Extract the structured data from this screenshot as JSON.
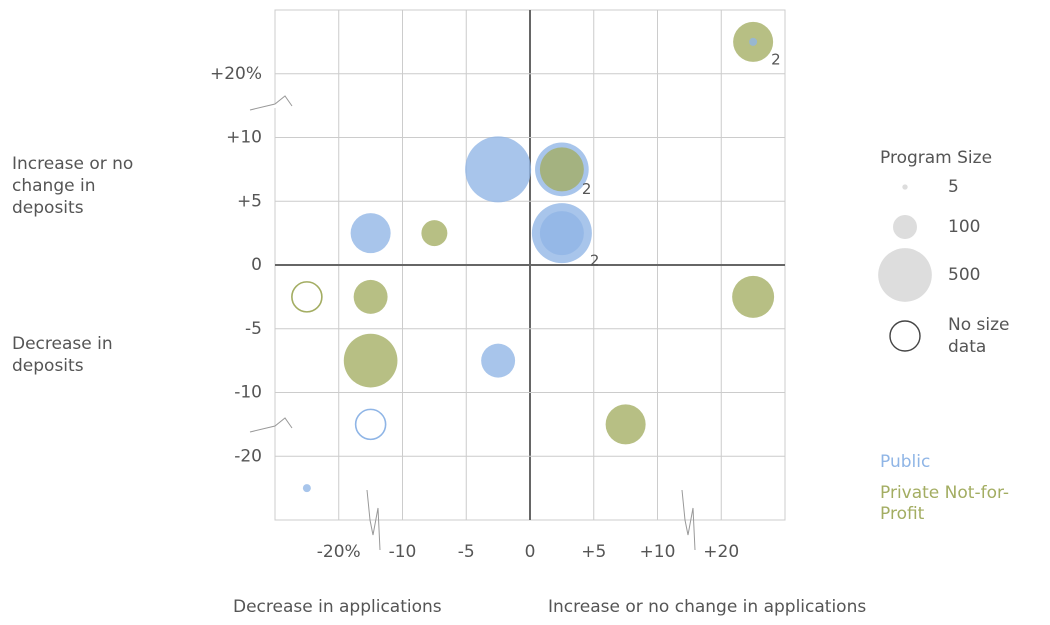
{
  "chart_data": {
    "type": "scatter",
    "xlim": [
      -30,
      30
    ],
    "ylim": [
      -30,
      30
    ],
    "xticks": [
      {
        "value": -20,
        "label": "-20%"
      },
      -10,
      -5,
      0,
      {
        "value": 5,
        "label": "+5"
      },
      {
        "value": 10,
        "label": "+10"
      },
      {
        "value": 20,
        "label": "+20"
      }
    ],
    "yticks": [
      {
        "value": 20,
        "label": "+20%"
      },
      {
        "value": 10,
        "label": "+10"
      },
      {
        "value": 5,
        "label": "+5"
      },
      0,
      -5,
      -10,
      -20
    ],
    "grid": true,
    "axis_labels": {
      "y_top": "Increase or no change in deposits",
      "y_bottom": "Decrease in deposits",
      "x_left": "Decrease in applications",
      "x_right": "Increase or no change in applications"
    },
    "size_legend": {
      "title": "Program Size",
      "sizes": [
        5,
        100,
        500
      ],
      "no_size_label": "No size data"
    },
    "series": [
      {
        "name": "Public",
        "color": "#8fb5e6",
        "x": [
          -2.5,
          2.5,
          2.5,
          2.5,
          -15,
          -2.5,
          -15,
          -25,
          25
        ],
        "y": [
          7.5,
          7.5,
          2.5,
          2.5,
          2.5,
          -7.5,
          -15,
          -25,
          25
        ],
        "sizes": [
          756,
          500,
          625,
          336,
          278,
          200,
          null,
          11,
          11
        ],
        "point_labels": [
          null,
          null,
          "2",
          null,
          null,
          null,
          null,
          null,
          null
        ]
      },
      {
        "name": "Private Not-for-Profit",
        "color": "#a3ad62",
        "x": [
          25,
          2.5,
          -7.5,
          -25,
          -15,
          25,
          -15,
          7.5
        ],
        "y": [
          25,
          7.5,
          2.5,
          -2.5,
          -2.5,
          -2.5,
          -7.5,
          -15
        ],
        "sizes": [
          278,
          336,
          117,
          null,
          200,
          306,
          500,
          278
        ],
        "point_labels": [
          "2",
          "2",
          null,
          null,
          null,
          null,
          null,
          null
        ]
      }
    ]
  }
}
